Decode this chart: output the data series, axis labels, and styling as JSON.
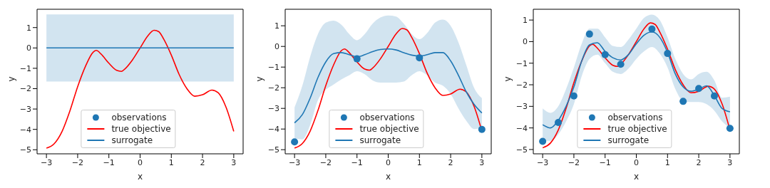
{
  "chart_data": [
    {
      "type": "line",
      "xlabel": "x",
      "ylabel": "y",
      "xlim": [
        -3.3,
        3.3
      ],
      "ylim": [
        -5.2,
        1.9
      ],
      "xticks": [
        -3,
        -2,
        -1,
        0,
        1,
        2,
        3
      ],
      "yticks": [
        -5,
        -4,
        -3,
        -2,
        -1,
        0,
        1
      ],
      "legend": "bottom",
      "series": [
        {
          "name": "observations",
          "type": "scatter",
          "color": "#1f77b4"
        },
        {
          "name": "true objective",
          "color": "#ff0000",
          "x": [
            -3,
            -2.75,
            -2.5,
            -2.25,
            -2,
            -1.75,
            -1.5,
            -1.4,
            -1.25,
            -1,
            -0.75,
            -0.6,
            -0.5,
            -0.25,
            0,
            0.25,
            0.45,
            0.6,
            0.75,
            1,
            1.25,
            1.5,
            1.75,
            2,
            2.3,
            2.5,
            2.75,
            3
          ],
          "values": [
            -4.92,
            -4.7,
            -4.1,
            -3.1,
            -1.9,
            -0.9,
            -0.2,
            -0.12,
            -0.3,
            -0.75,
            -1.1,
            -1.15,
            -1.05,
            -0.6,
            0,
            0.6,
            0.87,
            0.8,
            0.45,
            -0.35,
            -1.3,
            -2,
            -2.37,
            -2.3,
            -2.07,
            -2.2,
            -2.9,
            -4.1
          ]
        },
        {
          "name": "surrogate",
          "color": "#1f77b4",
          "x": [
            -3,
            3
          ],
          "values": [
            0,
            0
          ],
          "lower": [
            -1.65,
            -1.65
          ],
          "upper": [
            1.65,
            1.65
          ]
        }
      ]
    },
    {
      "type": "line",
      "xlabel": "x",
      "ylabel": "y",
      "xlim": [
        -3.3,
        3.3
      ],
      "ylim": [
        -5.2,
        1.8
      ],
      "xticks": [
        -3,
        -2,
        -1,
        0,
        1,
        2,
        3
      ],
      "yticks": [
        -5,
        -4,
        -3,
        -2,
        -1,
        0,
        1
      ],
      "legend": "bottom",
      "series": [
        {
          "name": "observations",
          "type": "scatter",
          "color": "#1f77b4",
          "x": [
            -3,
            -1,
            1,
            3
          ],
          "values": [
            -4.62,
            -0.6,
            -0.55,
            -4.02
          ]
        },
        {
          "name": "true objective",
          "color": "#ff0000",
          "x": [
            -3,
            -2.75,
            -2.5,
            -2.25,
            -2,
            -1.75,
            -1.5,
            -1.4,
            -1.25,
            -1,
            -0.75,
            -0.6,
            -0.5,
            -0.25,
            0,
            0.25,
            0.45,
            0.6,
            0.75,
            1,
            1.25,
            1.5,
            1.75,
            2,
            2.3,
            2.5,
            2.75,
            3
          ],
          "values": [
            -4.92,
            -4.7,
            -4.1,
            -3.1,
            -1.9,
            -0.9,
            -0.2,
            -0.12,
            -0.3,
            -0.75,
            -1.1,
            -1.15,
            -1.05,
            -0.6,
            0,
            0.6,
            0.87,
            0.8,
            0.45,
            -0.35,
            -1.3,
            -2,
            -2.37,
            -2.3,
            -2.07,
            -2.2,
            -2.9,
            -4.1
          ]
        },
        {
          "name": "surrogate",
          "color": "#1f77b4",
          "x": [
            -3,
            -2.75,
            -2.5,
            -2.25,
            -2,
            -1.75,
            -1.5,
            -1.25,
            -1,
            -0.75,
            -0.5,
            -0.25,
            0,
            0.25,
            0.5,
            0.75,
            1,
            1.25,
            1.5,
            1.75,
            2,
            2.25,
            2.5,
            2.75,
            3
          ],
          "values": [
            -3.7,
            -3.3,
            -2.5,
            -1.5,
            -0.75,
            -0.35,
            -0.3,
            -0.4,
            -0.5,
            -0.4,
            -0.25,
            -0.15,
            -0.12,
            -0.17,
            -0.3,
            -0.42,
            -0.47,
            -0.4,
            -0.3,
            -0.3,
            -0.7,
            -1.4,
            -2.2,
            -2.8,
            -3.22
          ],
          "lower": [
            -4.45,
            -4.5,
            -3.8,
            -2.6,
            -2.1,
            -1.85,
            -1.6,
            -1.4,
            -1.2,
            -1.35,
            -1.65,
            -1.75,
            -1.75,
            -1.75,
            -1.7,
            -1.4,
            -1.2,
            -1.4,
            -1.75,
            -1.9,
            -2.3,
            -3,
            -3.6,
            -4,
            -3.95
          ],
          "upper": [
            -2.95,
            -1.9,
            -0.5,
            0.6,
            1.15,
            1.25,
            1.05,
            0.6,
            0.3,
            0.6,
            1.1,
            1.4,
            1.5,
            1.45,
            1.1,
            0.6,
            0.35,
            0.65,
            1.15,
            1.3,
            1,
            0.2,
            -0.9,
            -2,
            -2.5
          ]
        }
      ]
    },
    {
      "type": "line",
      "xlabel": "x",
      "ylabel": "y",
      "xlim": [
        -3.3,
        3.3
      ],
      "ylim": [
        -5.2,
        1.5
      ],
      "xticks": [
        -3,
        -2,
        -1,
        0,
        1,
        2,
        3
      ],
      "yticks": [
        -5,
        -4,
        -3,
        -2,
        -1,
        0,
        1
      ],
      "legend": "bottom",
      "series": [
        {
          "name": "observations",
          "type": "scatter",
          "color": "#1f77b4",
          "x": [
            -3,
            -2.5,
            -2,
            -1.5,
            -1,
            -0.5,
            0.5,
            1,
            1.5,
            2,
            2.5,
            3
          ],
          "values": [
            -4.62,
            -3.75,
            -2.52,
            0.35,
            -0.6,
            -1.05,
            0.58,
            -0.55,
            -2.77,
            -2.17,
            -2.52,
            -4.02
          ]
        },
        {
          "name": "true objective",
          "color": "#ff0000",
          "x": [
            -3,
            -2.75,
            -2.5,
            -2.25,
            -2,
            -1.75,
            -1.5,
            -1.4,
            -1.25,
            -1,
            -0.75,
            -0.6,
            -0.5,
            -0.25,
            0,
            0.25,
            0.45,
            0.6,
            0.75,
            1,
            1.25,
            1.5,
            1.75,
            2,
            2.3,
            2.5,
            2.75,
            3
          ],
          "values": [
            -4.92,
            -4.7,
            -4.1,
            -3.1,
            -1.9,
            -0.9,
            -0.2,
            -0.12,
            -0.3,
            -0.75,
            -1.1,
            -1.15,
            -1.05,
            -0.6,
            0,
            0.6,
            0.87,
            0.8,
            0.45,
            -0.35,
            -1.3,
            -2,
            -2.37,
            -2.3,
            -2.07,
            -2.2,
            -2.9,
            -4.1
          ]
        },
        {
          "name": "surrogate",
          "color": "#1f77b4",
          "x": [
            -3,
            -2.75,
            -2.5,
            -2.25,
            -2,
            -1.75,
            -1.5,
            -1.25,
            -1,
            -0.75,
            -0.5,
            -0.25,
            0,
            0.25,
            0.5,
            0.75,
            1,
            1.25,
            1.5,
            1.75,
            2,
            2.25,
            2.5,
            2.75,
            3
          ],
          "values": [
            -3.85,
            -4,
            -3.65,
            -3,
            -2.1,
            -0.9,
            -0.15,
            -0.05,
            -0.45,
            -0.75,
            -0.85,
            -0.6,
            -0.1,
            0.3,
            0.45,
            0.2,
            -0.5,
            -1.5,
            -2.1,
            -2.3,
            -2.2,
            -2.05,
            -2.5,
            -3.1,
            -3.25
          ],
          "lower": [
            -4.6,
            -4.6,
            -4.3,
            -3.7,
            -2.9,
            -1.6,
            -0.8,
            -0.6,
            -1,
            -1.4,
            -1.5,
            -1.25,
            -0.8,
            -0.45,
            -0.25,
            -0.55,
            -1.2,
            -2.2,
            -2.75,
            -2.8,
            -2.8,
            -2.9,
            -3.2,
            -3.7,
            -4
          ],
          "upper": [
            -3.1,
            -3.3,
            -3,
            -2.2,
            -1.2,
            -0.1,
            0.6,
            0.6,
            0.2,
            -0.2,
            -0.25,
            0.1,
            0.6,
            1.1,
            1.25,
            1,
            0.2,
            -0.8,
            -1.5,
            -1.75,
            -1.5,
            -1.4,
            -1.8,
            -2.6,
            -2.55
          ]
        }
      ]
    }
  ]
}
